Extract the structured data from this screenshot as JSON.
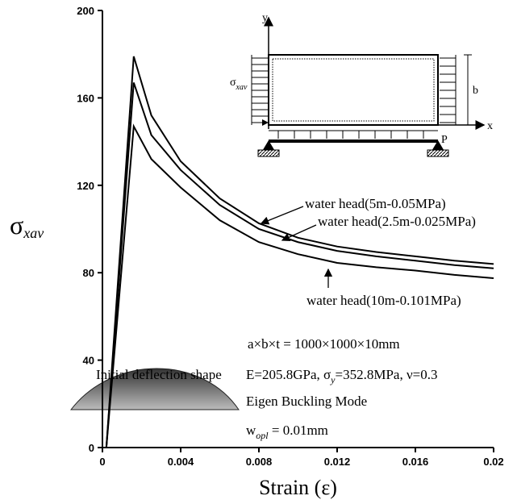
{
  "chart_data": {
    "type": "line",
    "xlabel": "Strain (ε)",
    "ylabel": [
      "σ",
      "xav"
    ],
    "x": [
      0.0002,
      0.0016,
      0.0025,
      0.004,
      0.006,
      0.008,
      0.01,
      0.012,
      0.014,
      0.016,
      0.018,
      0.02
    ],
    "series": [
      {
        "color": "#000000",
        "values": [
          0,
          179,
          152,
          131,
          114,
          102.6,
          96,
          92,
          89.5,
          87.5,
          85.5,
          84
        ]
      },
      {
        "color": "#000000",
        "values": [
          0,
          167,
          143,
          127,
          111,
          100,
          94,
          90,
          87.5,
          85.5,
          83.5,
          82
        ]
      },
      {
        "color": "#000000",
        "values": [
          0,
          147,
          132,
          119,
          104,
          94,
          88.5,
          84.5,
          82.5,
          81,
          79,
          77.5
        ]
      }
    ],
    "xlim": [
      0,
      0.02
    ],
    "xticks": [
      0,
      0.004,
      0.008,
      0.012,
      0.016,
      0.02
    ],
    "ylim": [
      0,
      200
    ],
    "yticks": [
      0,
      40,
      80,
      120,
      160,
      200
    ],
    "annotations": [
      [
        "water head(5m-0.05MPa)"
      ],
      [
        "water head(2.5m-0.025MPa)"
      ],
      [
        "water head(10m-0.101MPa)"
      ],
      [
        "a×b×t = 1000×1000×10mm"
      ],
      [
        "Initial deflection shape"
      ],
      [
        "E=205.8GPa, σ",
        "y",
        "=352.8MPa, ν=0.3"
      ],
      [
        "Eigen Buckling Mode"
      ],
      [
        "w",
        "opl",
        " = 0.01mm"
      ]
    ],
    "inset_labels": [
      [
        "y"
      ],
      [
        "x"
      ],
      [
        "σ",
        "xav"
      ],
      [
        "b"
      ],
      [
        "P"
      ]
    ]
  }
}
